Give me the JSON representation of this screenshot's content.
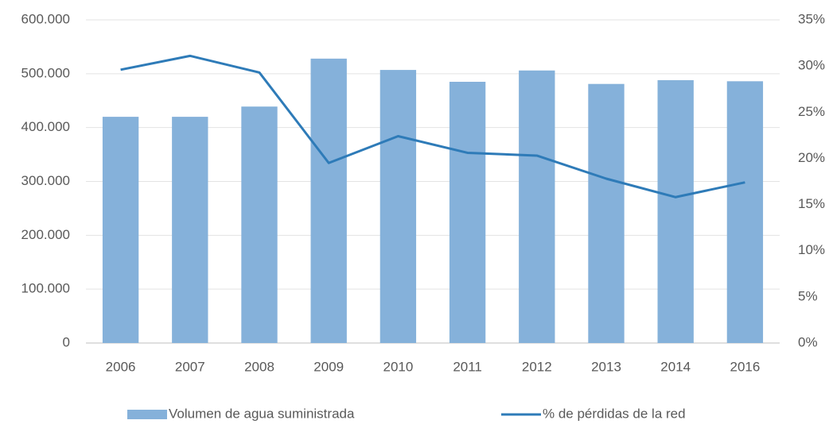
{
  "chart_data": {
    "type": "bar-line",
    "categories": [
      "2006",
      "2007",
      "2008",
      "2009",
      "2010",
      "2011",
      "2012",
      "2013",
      "2014",
      "2016"
    ],
    "series": [
      {
        "name": "Volumen de agua suministrada",
        "type": "bar",
        "color": "#85b1da",
        "values": [
          420000,
          420000,
          439000,
          528000,
          507000,
          485000,
          506000,
          481000,
          488000,
          486000
        ]
      },
      {
        "name": "% de pérdidas de la red",
        "type": "line",
        "axis": "y2",
        "color": "#2e7bb8",
        "values": [
          29.6,
          31.1,
          29.3,
          19.5,
          22.4,
          20.6,
          20.3,
          17.8,
          15.8,
          17.4
        ]
      }
    ],
    "ylim": [
      0,
      600000
    ],
    "yticks": [
      0,
      {
        "value": 100000,
        "label": "100.000"
      },
      {
        "value": 200000,
        "label": "200.000"
      },
      {
        "value": 300000,
        "label": "300.000"
      },
      {
        "value": 400000,
        "label": "400.000"
      },
      {
        "value": 500000,
        "label": "500.000"
      },
      {
        "value": 600000,
        "label": "600.000"
      }
    ],
    "y2lim": [
      0,
      35
    ],
    "y2ticks": [
      {
        "value": 0,
        "label": "0%"
      },
      {
        "value": 5,
        "label": "5%"
      },
      {
        "value": 10,
        "label": "10%"
      },
      {
        "value": 15,
        "label": "15%"
      },
      {
        "value": 20,
        "label": "20%"
      },
      {
        "value": 25,
        "label": "25%"
      },
      {
        "value": 30,
        "label": "30%"
      },
      {
        "value": 35,
        "label": "35%"
      }
    ],
    "grid": true,
    "legend": "bottom"
  }
}
